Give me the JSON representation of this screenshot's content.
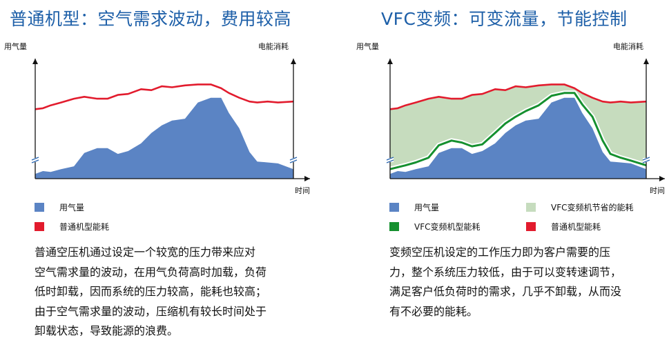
{
  "colors": {
    "title": "#1d5fa8",
    "air_demand": "#5b84c4",
    "standard_energy": "#e21b2d",
    "vfc_energy": "#15902f",
    "savings": "#c6dcbe"
  },
  "left": {
    "title": "普通机型：空气需求波动，费用较高",
    "legend": [
      "用气量",
      "普通机型能耗"
    ],
    "desc_lines": [
      "普通空压机通过设定一个较宽的压力带来应对",
      "空气需求量的波动，在用气负荷高时加载，负荷",
      "低时卸载，因而系统的压力较高，能耗也较高；",
      "由于空气需求量的波动，压缩机有较长时间处于",
      "卸载状态，导致能源的浪费。"
    ]
  },
  "right": {
    "title": "VFC变频：可变流量，节能控制",
    "legend": [
      "用气量",
      "VFC变频机节省的能耗",
      "VFC变频机型能耗",
      "普通机型能耗"
    ],
    "desc_lines": [
      "变频空压机设定的工作压力即为客户需要的压",
      "力，整个系统压力较低，由于可以变转速调节，",
      "满足客户低负荷时的需求，几乎不卸载，从而没",
      "有不必要的能耗。"
    ]
  },
  "chart_data": [
    {
      "type": "area",
      "title": "普通机型：空气需求波动，费用较高",
      "ylabel": "用气量",
      "y2label": "电能消耗",
      "xlabel": "时间",
      "ylim": [
        0,
        100
      ],
      "x": [
        0,
        3,
        6,
        10,
        15,
        19,
        24,
        28,
        32,
        36,
        41,
        45,
        49,
        53,
        58,
        63,
        68,
        72,
        75,
        79,
        83,
        86,
        90,
        94,
        100
      ],
      "series": [
        {
          "name": "用气量",
          "values": [
            5,
            8,
            7,
            10,
            13,
            27,
            32,
            32,
            26,
            29,
            37,
            48,
            56,
            61,
            63,
            80,
            85,
            85,
            69,
            53,
            28,
            18,
            17,
            16,
            10
          ]
        },
        {
          "name": "普通机型能耗",
          "values": [
            73,
            74,
            77,
            80,
            84,
            86,
            84,
            84,
            88,
            89,
            94,
            93,
            97,
            96,
            98,
            99,
            99,
            95,
            90,
            85,
            81,
            80,
            81,
            80,
            81
          ]
        }
      ]
    },
    {
      "type": "area",
      "title": "VFC变频：可变流量，节能控制",
      "ylabel": "用气量",
      "y2label": "电能消耗",
      "xlabel": "时间",
      "ylim": [
        0,
        100
      ],
      "x": [
        0,
        3,
        6,
        10,
        15,
        19,
        24,
        28,
        32,
        36,
        41,
        45,
        49,
        53,
        58,
        63,
        68,
        72,
        75,
        79,
        83,
        86,
        90,
        94,
        100
      ],
      "series": [
        {
          "name": "用气量",
          "values": [
            5,
            8,
            7,
            10,
            13,
            27,
            32,
            32,
            26,
            29,
            37,
            48,
            56,
            61,
            63,
            80,
            85,
            85,
            69,
            53,
            28,
            18,
            17,
            16,
            10
          ]
        },
        {
          "name": "VFC变频机型能耗",
          "values": [
            10,
            12,
            14,
            17,
            22,
            35,
            40,
            38,
            34,
            36,
            48,
            58,
            65,
            71,
            77,
            87,
            90,
            90,
            78,
            65,
            40,
            26,
            22,
            19,
            14
          ]
        },
        {
          "name": "普通机型能耗",
          "values": [
            73,
            74,
            77,
            80,
            84,
            86,
            84,
            84,
            88,
            89,
            94,
            93,
            97,
            96,
            98,
            99,
            99,
            95,
            90,
            85,
            81,
            80,
            81,
            80,
            81
          ]
        }
      ]
    }
  ]
}
